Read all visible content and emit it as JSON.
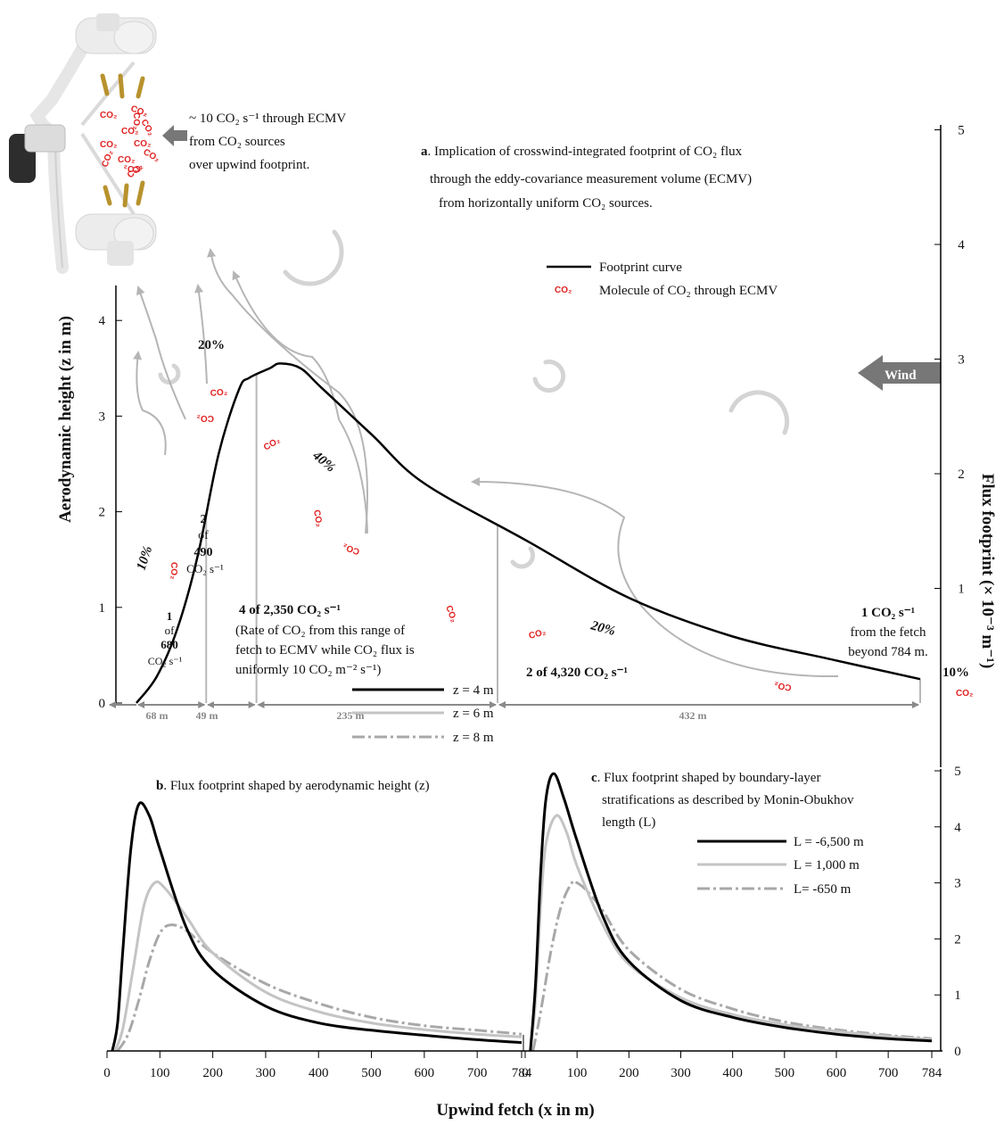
{
  "colors": {
    "curve": "#000000",
    "gray": "#b8b8b8",
    "dashed": "#9a9a9a",
    "arrow": "#b5b5b5",
    "co2": "#e02020",
    "wind": "#777777",
    "sensor": "#e6e6e6",
    "paddle": "#b8922e"
  },
  "icons": [
    "sonic-anemometer-icon",
    "wind-arrow-icon",
    "eddy-swirl-icon",
    "co2-molecule-icon"
  ],
  "panel_a": {
    "title_letter": "a",
    "title_lines": [
      "Implication of crosswind-integrated footprint of CO₂ flux",
      "through the eddy-covariance measurement volume (ECMV)",
      "from horizontally uniform CO₂ sources."
    ],
    "sensor_note": [
      "~ 10 CO₂ s⁻¹ through ECMV",
      "from CO₂ sources",
      "over upwind footprint."
    ],
    "legend_curve": "Footprint curve",
    "legend_molecule": "Molecule of CO₂ through ECMV",
    "co2_label": "CO₂",
    "wind_label": "Wind",
    "left_axis_label": "Aerodynamic height (z in m)",
    "right_axis_label": "Flux footprint (× 10⁻³ m⁻¹)",
    "left_ticks": [
      "0",
      "1",
      "2",
      "3",
      "4"
    ],
    "right_ticks": [
      "1",
      "2",
      "3",
      "4",
      "5"
    ],
    "segments": [
      "68 m",
      "49 m",
      "235 m",
      "432 m"
    ],
    "pct": [
      "10%",
      "20%",
      "40%",
      "20%",
      "10%"
    ],
    "seg1": [
      "1",
      "of",
      "680",
      "CO₂ s⁻¹"
    ],
    "seg2": [
      "2",
      "of",
      "490",
      "CO₂ s⁻¹"
    ],
    "seg3": [
      "4 of 2,350 CO₂ s⁻¹",
      "(Rate of CO₂ from this range of",
      "fetch to ECMV while CO₂ flux is",
      "uniformly 10 CO₂ m⁻² s⁻¹)"
    ],
    "seg4": "2 of 4,320 CO₂ s⁻¹",
    "beyond": [
      "1 CO₂ s⁻¹",
      "from the fetch",
      "beyond 784 m."
    ]
  },
  "panel_b": {
    "title_letter": "b",
    "title": "Flux footprint shaped by aerodynamic height (z)",
    "legend": [
      "z = 4 m",
      "z = 6 m",
      "z = 8 m"
    ]
  },
  "panel_c": {
    "title_letter": "c",
    "title_lines": [
      "Flux footprint shaped by boundary-layer",
      "stratifications as described by Monin-Obukhov",
      "length (L)"
    ],
    "legend": [
      "L = -6,500 m",
      "L =  1,000 m",
      "L=     -650 m"
    ]
  },
  "bottom_right_ticks": [
    "0",
    "1",
    "2",
    "3",
    "4",
    "5"
  ],
  "x_ticks": [
    "0",
    "100",
    "200",
    "300",
    "400",
    "500",
    "600",
    "700",
    "784"
  ],
  "x_axis_label": "Upwind fetch (x in m)",
  "chart_data": [
    {
      "type": "line",
      "title": "Implication of crosswind-integrated footprint of CO₂ flux through the eddy-covariance measurement volume (ECMV) from horizontally uniform CO₂ sources.",
      "xlabel": "Upwind fetch (x in m)",
      "ylabel": "Aerodynamic height (z in m)",
      "y2label": "Flux footprint (× 10⁻³ m⁻¹)",
      "xlim": [
        0,
        784
      ],
      "ylim": [
        0,
        4.5
      ],
      "y2lim": [
        0,
        5
      ],
      "series": [
        {
          "name": "Footprint curve",
          "x": [
            20,
            40,
            60,
            80,
            100,
            120,
            130,
            150,
            160,
            180,
            200,
            250,
            300,
            400,
            500,
            600,
            700,
            784
          ],
          "y": [
            0,
            0.28,
            0.78,
            1.55,
            2.6,
            3.28,
            3.4,
            3.5,
            3.55,
            3.5,
            3.3,
            2.8,
            2.3,
            1.7,
            1.1,
            0.7,
            0.45,
            0.25
          ]
        }
      ],
      "footprint_ranges_m": [
        68,
        49,
        235,
        432
      ],
      "footprint_shares": [
        "10%",
        "20%",
        "40%",
        "20%",
        "10%"
      ]
    },
    {
      "type": "line",
      "title": "Flux footprint shaped by aerodynamic height (z)",
      "xlabel": "Upwind fetch (x in m)",
      "xlim": [
        0,
        784
      ],
      "ylim": [
        0,
        5
      ],
      "series": [
        {
          "name": "z = 4 m",
          "x": [
            10,
            20,
            30,
            45,
            60,
            80,
            100,
            150,
            200,
            300,
            400,
            500,
            600,
            700,
            784
          ],
          "y": [
            0,
            0.5,
            1.8,
            3.6,
            4.4,
            4.2,
            3.6,
            2.2,
            1.45,
            0.8,
            0.5,
            0.37,
            0.28,
            0.2,
            0.15
          ]
        },
        {
          "name": "z = 6 m",
          "x": [
            15,
            30,
            50,
            70,
            90,
            110,
            150,
            200,
            300,
            400,
            500,
            600,
            700,
            784
          ],
          "y": [
            0,
            0.4,
            1.5,
            2.6,
            3.0,
            2.9,
            2.4,
            1.75,
            1.05,
            0.7,
            0.5,
            0.38,
            0.3,
            0.25
          ]
        },
        {
          "name": "z = 8 m",
          "x": [
            20,
            40,
            60,
            80,
            100,
            120,
            150,
            200,
            300,
            400,
            500,
            600,
            700,
            784
          ],
          "y": [
            0,
            0.3,
            0.9,
            1.6,
            2.1,
            2.25,
            2.15,
            1.75,
            1.2,
            0.85,
            0.6,
            0.45,
            0.37,
            0.3
          ]
        }
      ]
    },
    {
      "type": "line",
      "title": "Flux footprint shaped by boundary-layer stratifications as described by Monin-Obukhov length (L)",
      "xlabel": "Upwind fetch (x in m)",
      "xlim": [
        0,
        784
      ],
      "ylim": [
        0,
        5
      ],
      "series": [
        {
          "name": "L = -6,500 m",
          "x": [
            10,
            20,
            30,
            40,
            55,
            75,
            100,
            150,
            200,
            300,
            400,
            500,
            600,
            700,
            784
          ],
          "y": [
            0,
            1.2,
            3.2,
            4.5,
            4.95,
            4.5,
            3.75,
            2.4,
            1.6,
            0.9,
            0.6,
            0.42,
            0.3,
            0.22,
            0.18
          ]
        },
        {
          "name": "L =  1,000 m",
          "x": [
            10,
            20,
            30,
            40,
            60,
            80,
            100,
            150,
            200,
            300,
            400,
            500,
            600,
            700,
            784
          ],
          "y": [
            0,
            0.9,
            2.6,
            3.7,
            4.2,
            3.9,
            3.3,
            2.25,
            1.55,
            0.95,
            0.65,
            0.47,
            0.35,
            0.26,
            0.2
          ]
        },
        {
          "name": "L=     -650 m",
          "x": [
            15,
            30,
            50,
            70,
            90,
            100,
            120,
            150,
            200,
            300,
            400,
            500,
            600,
            700,
            784
          ],
          "y": [
            0,
            0.7,
            1.8,
            2.6,
            3.0,
            3.0,
            2.85,
            2.5,
            1.8,
            1.1,
            0.75,
            0.52,
            0.38,
            0.28,
            0.22
          ]
        }
      ]
    }
  ]
}
